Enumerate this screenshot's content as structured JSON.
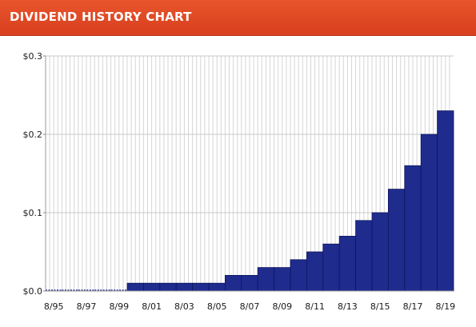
{
  "header": {
    "title": "DIVIDEND HISTORY CHART"
  },
  "colors": {
    "header": "#d94a24",
    "bar": "#1f2c8e",
    "bar_edge": "#0d165c",
    "grid": "#d6d6d6"
  },
  "chart_data": {
    "type": "bar",
    "title": "DIVIDEND HISTORY CHART",
    "xlabel": "",
    "ylabel": "",
    "ylim": [
      0,
      0.3
    ],
    "y_ticks": [
      0,
      0.1,
      0.2,
      0.3
    ],
    "y_tick_labels": [
      "$0.0",
      "$0.1",
      "$0.2",
      "$0.3"
    ],
    "x_tick_labels": [
      "8/95",
      "8/97",
      "8/99",
      "8/01",
      "8/03",
      "8/05",
      "8/07",
      "8/09",
      "8/11",
      "8/13",
      "8/15",
      "8/17",
      "8/19"
    ],
    "grid": true,
    "x": [
      "1995",
      "1996",
      "1997",
      "1998",
      "1999",
      "2000",
      "2001",
      "2002",
      "2003",
      "2004",
      "2005",
      "2006",
      "2007",
      "2008",
      "2009",
      "2010",
      "2011",
      "2012",
      "2013",
      "2014",
      "2015",
      "2016",
      "2017",
      "2018",
      "2019"
    ],
    "values": [
      0,
      0,
      0,
      0,
      0,
      0.01,
      0.01,
      0.01,
      0.01,
      0.01,
      0.01,
      0.02,
      0.02,
      0.03,
      0.03,
      0.04,
      0.05,
      0.06,
      0.07,
      0.09,
      0.1,
      0.13,
      0.16,
      0.2,
      0.23
    ]
  }
}
